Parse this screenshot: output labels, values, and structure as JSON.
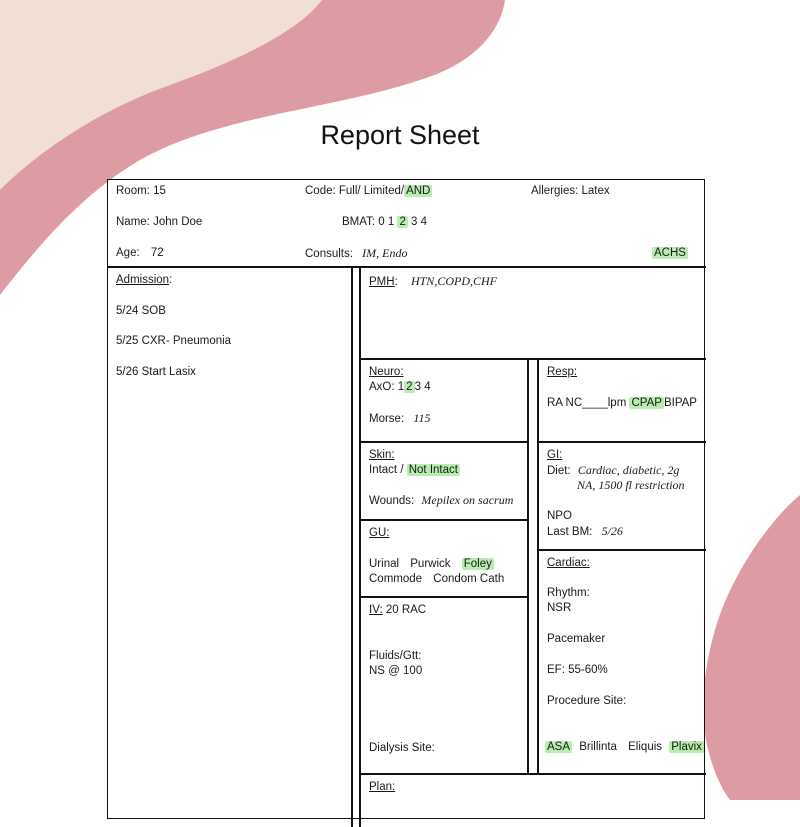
{
  "title": "Report Sheet",
  "colors": {
    "blob_pink": "#dd9ca4",
    "blob_cream": "#f2dfd3",
    "highlight": "#b9ecb0",
    "ink": "#111111"
  },
  "header": {
    "room_label": "Room:",
    "room_value": "15",
    "code_label": "Code: Full/ Limited/",
    "code_selected": "AND",
    "allergies": "Allergies: Latex",
    "name_label": "Name:",
    "name_value": "John Doe",
    "bmat_label": "BMAT:",
    "bmat_options": [
      "0",
      "1",
      "2",
      "3",
      "4"
    ],
    "bmat_selected": "2",
    "age_label": "Age:",
    "age_value": "72",
    "consults_label": "Consults:",
    "consults_value": "IM, Endo",
    "achs": "ACHS"
  },
  "admission": {
    "label": "Admission",
    "colon": ":",
    "entries": [
      "5/24 SOB",
      "5/25 CXR- Pneumonia",
      "5/26 Start Lasix"
    ]
  },
  "pmh": {
    "label": "PMH",
    "colon": ":",
    "value": "HTN,COPD,CHF"
  },
  "neuro": {
    "label": "Neuro:",
    "axo_label": "AxO:",
    "axo_options": [
      "1",
      "2",
      "3",
      "4"
    ],
    "axo_selected": "2",
    "morse_label": "Morse:",
    "morse_value": "115"
  },
  "resp": {
    "label": "Resp:",
    "line_prefix": "RA  NC",
    "line_blank": "____",
    "line_lpm": "lpm",
    "selected": "CPAP",
    "line_suffix": "BIPAP"
  },
  "skin": {
    "label": "Skin:",
    "intact": "Intact /",
    "selected": "Not Intact",
    "wounds_label": "Wounds:",
    "wounds_value": "Mepilex on sacrum"
  },
  "gi": {
    "label": "GI:",
    "diet_label": "Diet:",
    "diet_line1": "Cardiac, diabetic, 2g",
    "diet_line2": "NA, 1500 fl restriction",
    "npo": "NPO",
    "last_bm_label": "Last BM:",
    "last_bm_value": "5/26"
  },
  "gu": {
    "label": "GU:",
    "urinal": "Urinal",
    "purwick": "Purwick",
    "selected": "Foley",
    "commode": "Commode",
    "condom": "Condom Cath"
  },
  "iv": {
    "label": "IV:",
    "value": "20 RAC",
    "fluids_label": "Fluids/Gtt:",
    "fluids_value": "NS @ 100",
    "dialysis": "Dialysis Site:"
  },
  "cardiac": {
    "label": "Cardiac:",
    "rhythm_label": "Rhythm:",
    "rhythm_value": "NSR",
    "pacemaker": "Pacemaker",
    "ef": "EF: 55-60%",
    "procedure": "Procedure Site:",
    "meds": [
      {
        "name": "ASA",
        "selected": true
      },
      {
        "name": "Brillinta",
        "selected": false
      },
      {
        "name": "Eliquis",
        "selected": false
      },
      {
        "name": "Plavix",
        "selected": true
      }
    ]
  },
  "plan": {
    "label": "Plan:"
  }
}
